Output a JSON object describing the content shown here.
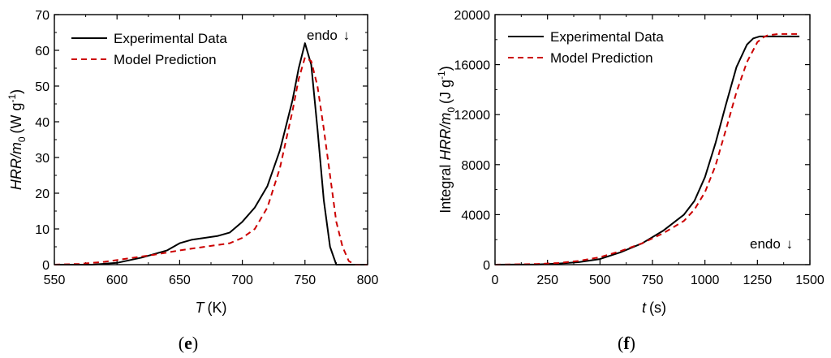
{
  "chart_data": [
    {
      "id": "e",
      "type": "line",
      "panel_label_open": "(",
      "panel_label_letter": "e",
      "panel_label_close": ")",
      "ylabel_italic": "HRR/m",
      "ylabel_sub": "0",
      "ylabel_unit": "(W g",
      "ylabel_sup": "-1",
      "ylabel_close": ")",
      "xlabel_italic": "T",
      "xlabel_unit": "(K)",
      "xlim": [
        550,
        800
      ],
      "ylim": [
        0,
        70
      ],
      "xticks": [
        550,
        600,
        650,
        700,
        750,
        800
      ],
      "yticks": [
        0,
        10,
        20,
        30,
        40,
        50,
        60,
        70
      ],
      "annotation": "endo",
      "annotation_arrow": "↓",
      "series": [
        {
          "name": "Experimental Data",
          "color": "#000000",
          "dash": "solid",
          "x": [
            550,
            580,
            600,
            620,
            640,
            650,
            660,
            670,
            680,
            690,
            700,
            710,
            720,
            730,
            740,
            745,
            750,
            755,
            760,
            765,
            770,
            775,
            800
          ],
          "y": [
            0,
            0,
            0.5,
            2,
            4,
            6,
            7,
            7.5,
            8,
            9,
            12,
            16,
            22,
            32,
            46,
            55,
            62,
            56,
            38,
            18,
            5,
            0,
            0
          ]
        },
        {
          "name": "Model Prediction",
          "color": "#cc0000",
          "dash": "dashed",
          "x": [
            550,
            570,
            590,
            610,
            630,
            650,
            670,
            690,
            700,
            710,
            720,
            730,
            740,
            745,
            750,
            755,
            760,
            765,
            770,
            775,
            780,
            785,
            790,
            800
          ],
          "y": [
            0,
            0.2,
            0.8,
            1.8,
            2.8,
            4,
            5,
            6,
            7.5,
            10,
            16,
            27,
            43,
            52,
            58,
            57,
            50,
            38,
            25,
            12,
            5,
            1,
            0,
            0
          ]
        }
      ]
    },
    {
      "id": "f",
      "type": "line",
      "panel_label_open": "(",
      "panel_label_letter": "f",
      "panel_label_close": ")",
      "ylabel_pre": "Integral ",
      "ylabel_italic": "HRR/m",
      "ylabel_sub": "0",
      "ylabel_unit": "(J g",
      "ylabel_sup": "-1",
      "ylabel_close": ")",
      "xlabel_italic": "t",
      "xlabel_unit": "(s)",
      "xlim": [
        0,
        1500
      ],
      "ylim": [
        0,
        20000
      ],
      "xticks": [
        0,
        250,
        500,
        750,
        1000,
        1250,
        1500
      ],
      "yticks": [
        0,
        4000,
        8000,
        12000,
        16000,
        20000
      ],
      "annotation": "endo",
      "annotation_arrow": "↓",
      "series": [
        {
          "name": "Experimental Data",
          "color": "#000000",
          "dash": "solid",
          "x": [
            0,
            200,
            300,
            400,
            500,
            600,
            700,
            800,
            900,
            950,
            1000,
            1050,
            1100,
            1150,
            1200,
            1230,
            1260,
            1280,
            1450
          ],
          "y": [
            0,
            20,
            80,
            200,
            450,
            1000,
            1700,
            2700,
            4000,
            5100,
            7000,
            9700,
            12800,
            15800,
            17600,
            18100,
            18250,
            18250,
            18250
          ]
        },
        {
          "name": "Model Prediction",
          "color": "#cc0000",
          "dash": "dashed",
          "x": [
            0,
            200,
            300,
            400,
            500,
            600,
            700,
            800,
            900,
            950,
            1000,
            1050,
            1100,
            1150,
            1200,
            1250,
            1280,
            1300,
            1350,
            1450
          ],
          "y": [
            0,
            50,
            130,
            300,
            600,
            1100,
            1700,
            2500,
            3500,
            4400,
            5800,
            7900,
            10800,
            13800,
            16200,
            17800,
            18200,
            18350,
            18450,
            18450
          ]
        }
      ]
    }
  ]
}
